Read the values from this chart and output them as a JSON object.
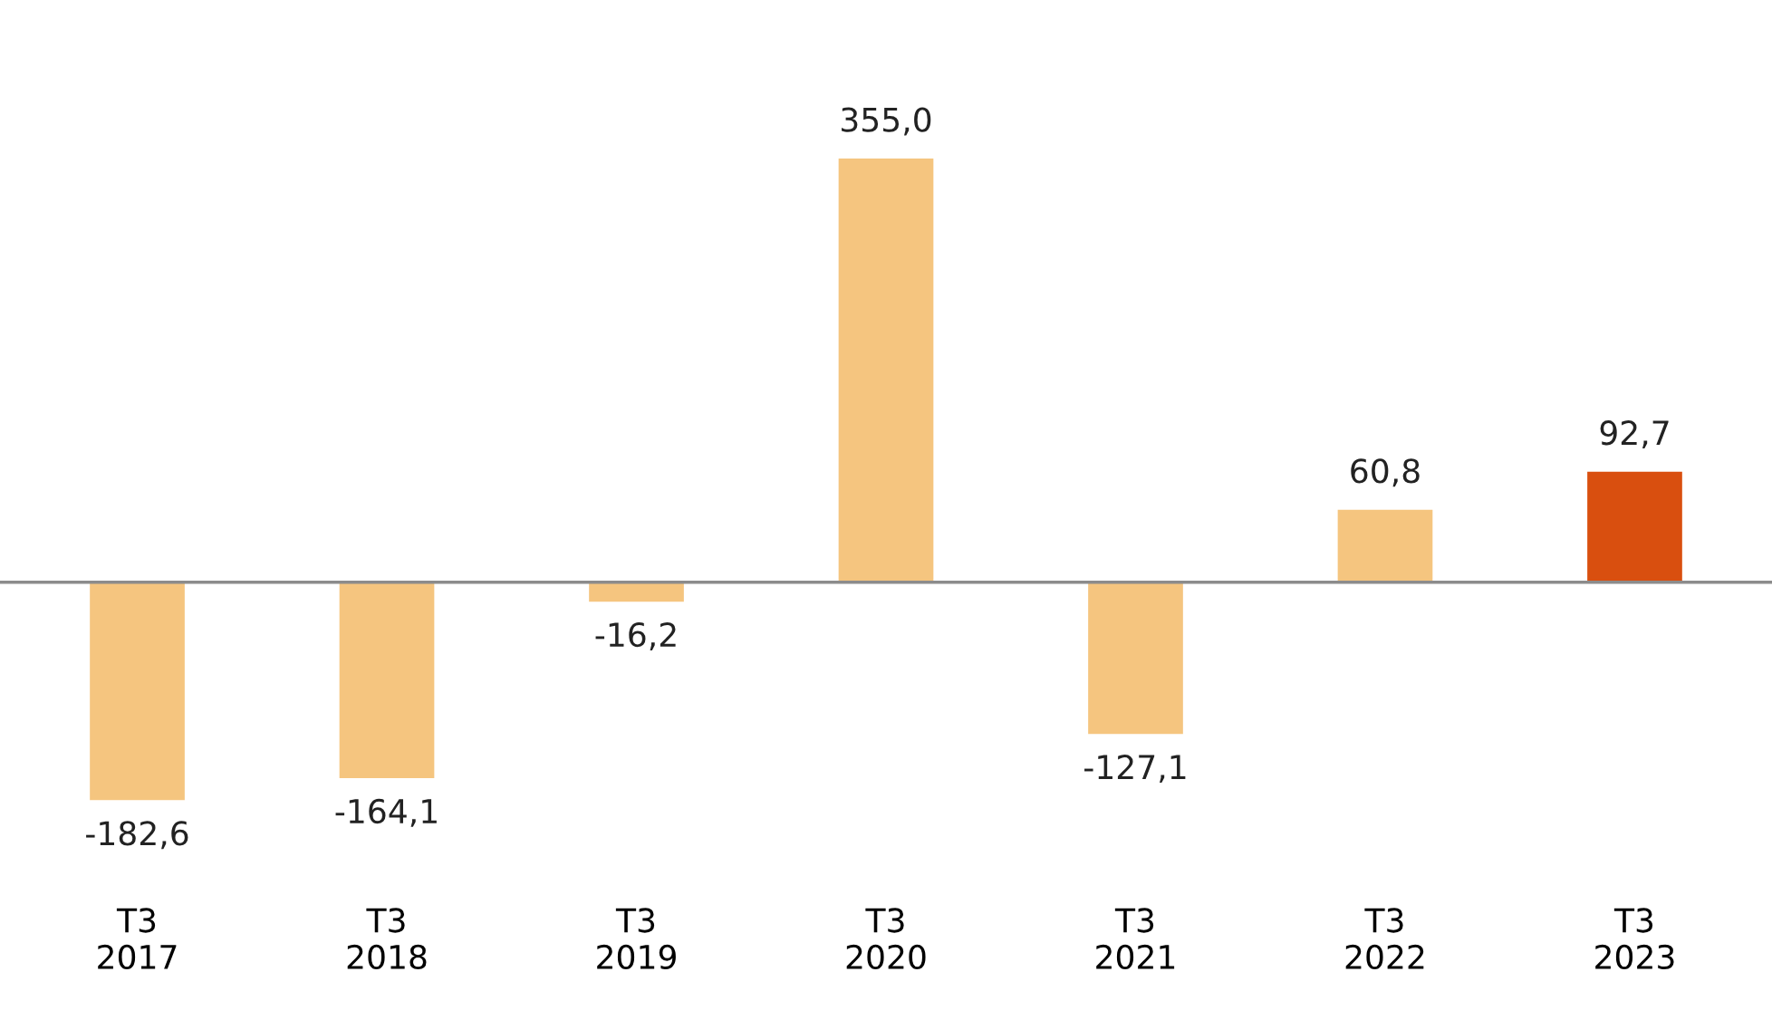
{
  "chart_data": {
    "type": "bar",
    "categories": [
      "T3\n2017",
      "T3\n2018",
      "T3\n2019",
      "T3\n2020",
      "T3\n2021",
      "T3\n2022",
      "T3\n2023"
    ],
    "values": [
      -182.6,
      -164.1,
      -16.2,
      355.0,
      -127.1,
      60.8,
      92.7
    ],
    "value_labels": [
      "-182,6",
      "-164,1",
      "-16,2",
      "355,0",
      "-127,1",
      "60,8",
      "92,7"
    ],
    "colors": [
      "#f5c57f",
      "#f5c57f",
      "#f5c57f",
      "#f5c57f",
      "#f5c57f",
      "#f5c57f",
      "#d94f0f"
    ],
    "tick_labels": "x",
    "grid": false,
    "legend": false
  }
}
